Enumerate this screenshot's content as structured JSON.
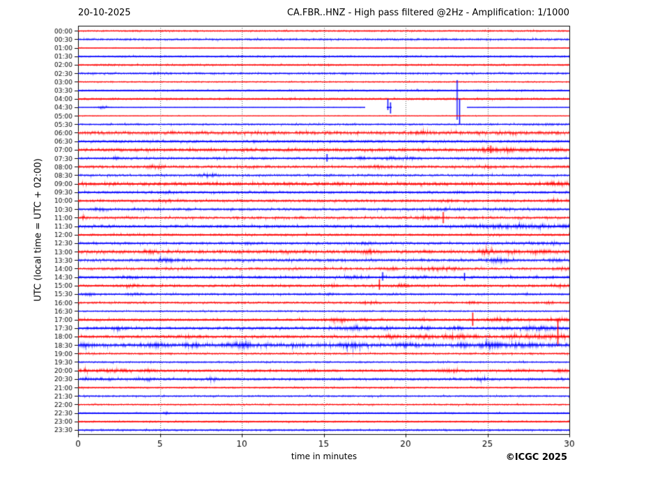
{
  "header": {
    "date": "20-10-2025",
    "title": "CA.FBR..HNZ - High pass filtered @2Hz - Amplification: 1/1000"
  },
  "footer": {
    "credit": "©ICGC 2025"
  },
  "chart_data": {
    "type": "line",
    "subtype": "helicorder-seismogram",
    "title": "CA.FBR..HNZ - High pass filtered @2Hz - Amplification: 1/1000",
    "date": "20-10-2025",
    "xlabel": "time in minutes",
    "ylabel": "UTC (local time = UTC + 02:00)",
    "x_range": [
      0,
      30
    ],
    "x_ticks": [
      0,
      5,
      10,
      15,
      20,
      25,
      30
    ],
    "grid_minutes": [
      5,
      10,
      15,
      20,
      25
    ],
    "grid_style": "dotted",
    "minutes_per_row": 30,
    "colors": {
      "red_trace": "#ff0000",
      "blue_trace": "#0000ff",
      "grid": "#555555",
      "frame": "#000000"
    },
    "rows": [
      {
        "label": "00:00",
        "color": "red",
        "amp": 1.1,
        "bursts": [],
        "spikes": []
      },
      {
        "label": "00:30",
        "color": "blue",
        "amp": 1.4,
        "bursts": [],
        "spikes": []
      },
      {
        "label": "01:00",
        "color": "red",
        "amp": 0.7,
        "light": true,
        "bursts": [],
        "spikes": []
      },
      {
        "label": "01:30",
        "color": "blue",
        "amp": 1.2,
        "bursts": [],
        "spikes": []
      },
      {
        "label": "02:00",
        "color": "red",
        "amp": 1.2,
        "bursts": [],
        "spikes": []
      },
      {
        "label": "02:30",
        "color": "blue",
        "amp": 1.3,
        "bursts": [
          [
            4.8,
            0.2,
            0.8
          ]
        ],
        "spikes": []
      },
      {
        "label": "03:00",
        "color": "red",
        "amp": 0.9,
        "bursts": [],
        "spikes": []
      },
      {
        "label": "03:30",
        "color": "blue",
        "amp": 1.1,
        "bursts": [],
        "spikes": []
      },
      {
        "label": "04:00",
        "color": "red",
        "amp": 1.3,
        "bursts": [],
        "spikes": []
      },
      {
        "label": "04:30",
        "color": "blue",
        "amp": 0.5,
        "light": true,
        "segments": [
          [
            0,
            17.55
          ],
          [
            18.85,
            19.15
          ],
          [
            23.75,
            30
          ]
        ],
        "bursts": [
          [
            1.5,
            0.25,
            1.8
          ]
        ],
        "spikes": [
          [
            18.92,
            12,
            4
          ],
          [
            19.08,
            7,
            9
          ],
          [
            23.15,
            39,
            18
          ],
          [
            23.3,
            12,
            24
          ]
        ]
      },
      {
        "label": "05:00",
        "color": "red",
        "amp": 0.6,
        "light": true,
        "bursts": [],
        "spikes": []
      },
      {
        "label": "05:30",
        "color": "blue",
        "amp": 1.2,
        "bursts": [
          [
            28.5,
            1.0,
            0.5
          ]
        ],
        "spikes": []
      },
      {
        "label": "06:00",
        "color": "red",
        "amp": 2.3,
        "bursts": [
          [
            21,
            0.4,
            1.2
          ],
          [
            26.5,
            0.3,
            1.2
          ]
        ],
        "spikes": []
      },
      {
        "label": "06:30",
        "color": "blue",
        "amp": 1.6,
        "bursts": [
          [
            22.3,
            0.2,
            0.8
          ]
        ],
        "spikes": []
      },
      {
        "label": "07:00",
        "color": "red",
        "amp": 2.2,
        "bursts": [
          [
            25.4,
            0.8,
            1.8
          ],
          [
            27.5,
            1.5,
            0.8
          ]
        ],
        "spikes": [
          [
            25.2,
            6,
            5
          ]
        ]
      },
      {
        "label": "07:30",
        "color": "blue",
        "amp": 1.6,
        "bursts": [
          [
            2.5,
            0.2,
            0.8
          ],
          [
            17.3,
            0.3,
            1.2
          ],
          [
            19.3,
            0.5,
            1.2
          ],
          [
            20.6,
            0.3,
            0.8
          ]
        ],
        "spikes": [
          [
            15.2,
            6,
            5
          ]
        ]
      },
      {
        "label": "08:00",
        "color": "red",
        "amp": 1.8,
        "bursts": [
          [
            4.7,
            0.4,
            1.8
          ],
          [
            18.3,
            0.4,
            1.3
          ],
          [
            24.9,
            0.5,
            1.3
          ]
        ],
        "spikes": []
      },
      {
        "label": "08:30",
        "color": "blue",
        "amp": 1.6,
        "bursts": [
          [
            8.0,
            0.4,
            2.2
          ]
        ],
        "spikes": []
      },
      {
        "label": "09:00",
        "color": "red",
        "amp": 2.2,
        "bursts": [
          [
            16.1,
            0.3,
            0.8
          ],
          [
            29.4,
            0.4,
            1.8
          ]
        ],
        "spikes": []
      },
      {
        "label": "09:30",
        "color": "blue",
        "amp": 1.6,
        "bursts": [
          [
            5.5,
            0.3,
            1.3
          ],
          [
            23.2,
            0.2,
            0.8
          ]
        ],
        "spikes": []
      },
      {
        "label": "10:00",
        "color": "red",
        "amp": 1.7,
        "bursts": [
          [
            5.3,
            0.3,
            1.4
          ],
          [
            22.6,
            0.3,
            0.9
          ],
          [
            29.1,
            0.3,
            1.3
          ]
        ],
        "spikes": []
      },
      {
        "label": "10:30",
        "color": "blue",
        "amp": 1.7,
        "bursts": [
          [
            1.5,
            0.3,
            1.4
          ],
          [
            22.3,
            0.6,
            0.9
          ],
          [
            26,
            0.5,
            0.7
          ]
        ],
        "spikes": []
      },
      {
        "label": "11:00",
        "color": "red",
        "amp": 1.7,
        "bursts": [
          [
            0.3,
            0.2,
            1.3
          ],
          [
            21.4,
            0.5,
            1.3
          ],
          [
            26.9,
            0.2,
            0.9
          ]
        ],
        "spikes": [
          [
            22.3,
            8,
            8
          ]
        ]
      },
      {
        "label": "11:30",
        "color": "blue",
        "amp": 1.7,
        "bursts": [
          [
            2.0,
            0.3,
            0.9
          ],
          [
            25,
            1.2,
            1.2
          ],
          [
            27,
            1.5,
            1.3
          ],
          [
            29,
            1.2,
            1.2
          ]
        ],
        "spikes": []
      },
      {
        "label": "12:00",
        "color": "red",
        "amp": 1.4,
        "bursts": [
          [
            25.5,
            0.2,
            0.9
          ]
        ],
        "spikes": []
      },
      {
        "label": "12:30",
        "color": "blue",
        "amp": 1.6,
        "bursts": [
          [
            10.4,
            0.3,
            0.9
          ],
          [
            17.8,
            0.4,
            1.4
          ],
          [
            28.6,
            0.6,
            0.9
          ]
        ],
        "spikes": []
      },
      {
        "label": "13:00",
        "color": "red",
        "amp": 2.2,
        "bursts": [
          [
            4.4,
            0.4,
            1.4
          ],
          [
            12.7,
            0.5,
            0.9
          ],
          [
            17.7,
            0.4,
            1.8
          ],
          [
            24.9,
            0.4,
            2.8
          ],
          [
            26.3,
            0.3,
            1.4
          ],
          [
            28.2,
            0.7,
            1.4
          ]
        ],
        "spikes": []
      },
      {
        "label": "13:30",
        "color": "blue",
        "amp": 1.9,
        "bursts": [
          [
            5.3,
            0.5,
            1.8
          ],
          [
            10.3,
            0.3,
            0.9
          ],
          [
            25.6,
            0.5,
            2.8
          ],
          [
            29.1,
            0.3,
            1.4
          ]
        ],
        "spikes": []
      },
      {
        "label": "14:00",
        "color": "red",
        "amp": 1.7,
        "bursts": [
          [
            19.1,
            0.3,
            1.4
          ],
          [
            21.3,
            0.4,
            1.4
          ],
          [
            22.5,
            0.4,
            1.4
          ],
          [
            29.5,
            0.3,
            1.4
          ]
        ],
        "spikes": []
      },
      {
        "label": "14:30",
        "color": "blue",
        "amp": 1.7,
        "bursts": [
          [
            3.5,
            0.5,
            0.9
          ],
          [
            16.8,
            0.4,
            1.4
          ],
          [
            21,
            0.3,
            0.9
          ]
        ],
        "spikes": [
          [
            18.6,
            7,
            5
          ],
          [
            23.6,
            6,
            5
          ]
        ]
      },
      {
        "label": "15:00",
        "color": "red",
        "amp": 1.6,
        "bursts": [
          [
            3.3,
            0.4,
            1.4
          ],
          [
            15.6,
            0.3,
            1.3
          ],
          [
            19.7,
            0.3,
            1.3
          ],
          [
            29.4,
            0.3,
            1.4
          ]
        ],
        "spikes": [
          [
            18.4,
            9,
            6
          ]
        ]
      },
      {
        "label": "15:30",
        "color": "blue",
        "amp": 1.3,
        "bursts": [
          [
            0.7,
            0.3,
            1.3
          ],
          [
            3.5,
            0.4,
            1.3
          ],
          [
            15.3,
            0.2,
            0.9
          ],
          [
            27.3,
            0.2,
            0.9
          ]
        ],
        "spikes": []
      },
      {
        "label": "16:00",
        "color": "red",
        "amp": 1.4,
        "bursts": [
          [
            17.7,
            0.4,
            1.3
          ],
          [
            24,
            0.3,
            0.9
          ],
          [
            28.8,
            0.3,
            0.9
          ]
        ],
        "spikes": []
      },
      {
        "label": "16:30",
        "color": "blue",
        "amp": 1.1,
        "bursts": [],
        "spikes": []
      },
      {
        "label": "17:00",
        "color": "red",
        "amp": 1.6,
        "bursts": [
          [
            15.9,
            0.5,
            1.8
          ],
          [
            17.5,
            0.3,
            1.3
          ],
          [
            21,
            0.4,
            0.9
          ],
          [
            25.8,
            0.8,
            1.3
          ],
          [
            29.4,
            0.4,
            1.8
          ]
        ],
        "spikes": [
          [
            24.1,
            10,
            9
          ]
        ]
      },
      {
        "label": "17:30",
        "color": "blue",
        "amp": 1.8,
        "bursts": [
          [
            2.5,
            0.3,
            1.3
          ],
          [
            16.8,
            0.7,
            2.2
          ],
          [
            18.9,
            0.3,
            1.3
          ],
          [
            21.1,
            0.3,
            1.3
          ],
          [
            23.1,
            0.3,
            1.3
          ],
          [
            25.9,
            0.3,
            1.3
          ],
          [
            28.1,
            0.8,
            2.2
          ]
        ],
        "spikes": []
      },
      {
        "label": "18:00",
        "color": "red",
        "amp": 1.8,
        "bursts": [
          [
            6.7,
            0.7,
            1.3
          ],
          [
            19.0,
            0.5,
            1.3
          ],
          [
            20.9,
            0.5,
            2.2
          ],
          [
            23.3,
            0.8,
            2.2
          ],
          [
            26.6,
            0.4,
            1.3
          ],
          [
            28.6,
            1.0,
            2.2
          ]
        ],
        "spikes": [
          [
            29.3,
            26,
            14
          ]
        ]
      },
      {
        "label": "18:30",
        "color": "blue",
        "amp": 2.7,
        "bursts": [
          [
            0.4,
            0.3,
            1.8
          ],
          [
            4.6,
            0.5,
            2.2
          ],
          [
            7.0,
            0.4,
            1.3
          ],
          [
            10.0,
            0.5,
            3.1
          ],
          [
            13.4,
            0.3,
            1.3
          ],
          [
            16.7,
            0.5,
            3.1
          ],
          [
            20.1,
            0.3,
            1.8
          ],
          [
            23.4,
            0.4,
            1.8
          ],
          [
            25.1,
            0.4,
            2.7
          ],
          [
            27.0,
            1.0,
            1.8
          ]
        ],
        "spikes": []
      },
      {
        "label": "19:00",
        "color": "red",
        "amp": 1.3,
        "bursts": [],
        "spikes": []
      },
      {
        "label": "19:30",
        "color": "blue",
        "amp": 1.2,
        "bursts": [],
        "spikes": []
      },
      {
        "label": "20:00",
        "color": "red",
        "amp": 1.6,
        "bursts": [
          [
            0.4,
            0.2,
            1.3
          ],
          [
            2.0,
            0.8,
            1.3
          ],
          [
            4.2,
            0.3,
            0.9
          ],
          [
            14.2,
            0.3,
            0.9
          ],
          [
            22.6,
            0.5,
            1.8
          ],
          [
            27.2,
            0.3,
            0.9
          ],
          [
            29.6,
            0.4,
            1.4
          ]
        ],
        "spikes": []
      },
      {
        "label": "20:30",
        "color": "blue",
        "amp": 1.6,
        "bursts": [
          [
            0.5,
            0.2,
            1.4
          ],
          [
            1.6,
            0.3,
            1.4
          ],
          [
            4.1,
            0.4,
            1.4
          ],
          [
            8.2,
            0.3,
            1.4
          ],
          [
            24.7,
            0.3,
            1.4
          ]
        ],
        "spikes": []
      },
      {
        "label": "21:00",
        "color": "red",
        "amp": 1.1,
        "bursts": [],
        "spikes": []
      },
      {
        "label": "21:30",
        "color": "blue",
        "amp": 1.1,
        "bursts": [],
        "spikes": []
      },
      {
        "label": "22:00",
        "color": "red",
        "amp": 1.1,
        "bursts": [],
        "spikes": []
      },
      {
        "label": "22:30",
        "color": "blue",
        "amp": 1.0,
        "bursts": [
          [
            5.4,
            0.1,
            1.4
          ]
        ],
        "spikes": []
      },
      {
        "label": "23:00",
        "color": "red",
        "amp": 1.1,
        "bursts": [],
        "spikes": []
      },
      {
        "label": "23:30",
        "color": "blue",
        "amp": 1.2,
        "bursts": [],
        "spikes": []
      }
    ]
  }
}
